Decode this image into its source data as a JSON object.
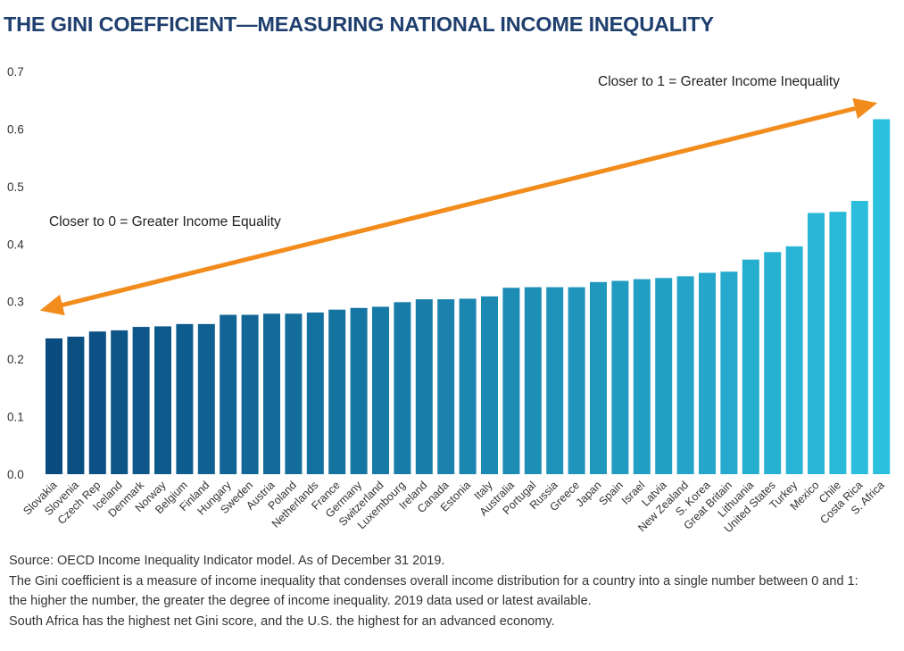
{
  "title": "THE GINI COEFFICIENT—MEASURING NATIONAL INCOME INEQUALITY",
  "colors": {
    "title": "#1f3f6e",
    "bar_dark": "#0a4b80",
    "bar_light": "#2bc0de",
    "arrow": "#f28c1d",
    "axis_text": "#333333"
  },
  "chart_data": {
    "type": "bar",
    "ylim": [
      0,
      0.7
    ],
    "yticks": [
      "0.0",
      "0.1",
      "0.2",
      "0.3",
      "0.4",
      "0.5",
      "0.6",
      "0.7"
    ],
    "grid": false,
    "categories": [
      "Slovakia",
      "Slovenia",
      "Czech Rep",
      "Iceland",
      "Denmark",
      "Norway",
      "Belgium",
      "Finland",
      "Hungary",
      "Sweden",
      "Austria",
      "Poland",
      "Netherlands",
      "France",
      "Germany",
      "Switzerland",
      "Luxembourg",
      "Ireland",
      "Canada",
      "Estonia",
      "Italy",
      "Australia",
      "Portugal",
      "Russia",
      "Greece",
      "Japan",
      "Spain",
      "Israel",
      "Latvia",
      "New Zealand",
      "S. Korea",
      "Great Britain",
      "Lithuania",
      "United States",
      "Turkey",
      "Mexico",
      "Chile",
      "Costa Rica",
      "S. Africa"
    ],
    "values": [
      0.236,
      0.239,
      0.248,
      0.25,
      0.256,
      0.257,
      0.261,
      0.261,
      0.277,
      0.277,
      0.279,
      0.279,
      0.281,
      0.286,
      0.289,
      0.291,
      0.299,
      0.304,
      0.304,
      0.305,
      0.309,
      0.324,
      0.325,
      0.325,
      0.325,
      0.334,
      0.336,
      0.339,
      0.341,
      0.344,
      0.35,
      0.352,
      0.373,
      0.386,
      0.396,
      0.454,
      0.456,
      0.475,
      0.617
    ],
    "annotations": {
      "low": "Closer to 0 = Greater Income Equality",
      "high": "Closer to 1 = Greater Income Inequality"
    }
  },
  "footnotes": [
    "Source: OECD Income Inequality Indicator model. As of December 31 2019.",
    "The Gini coefficient is a measure of income inequality that condenses overall income distribution for a country into a single number between 0 and 1:",
    "the higher the number, the greater the degree of income inequality. 2019 data used or latest available.",
    "South Africa has the highest net Gini score, and the U.S. the highest for an advanced economy."
  ]
}
